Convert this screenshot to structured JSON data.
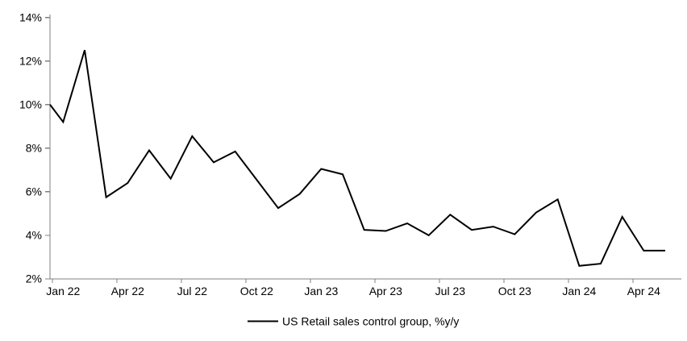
{
  "chart_data": {
    "type": "line",
    "title": "",
    "legend": "US Retail sales control group, %y/y",
    "legend_position": "bottom-center",
    "grid": "off",
    "ylim": [
      2,
      14
    ],
    "y_tick_labels": [
      "2%",
      "4%",
      "6%",
      "8%",
      "10%",
      "12%",
      "14%"
    ],
    "x_tick_labels": [
      "Jan 22",
      "Apr 22",
      "Jul 22",
      "Oct 22",
      "Jan 23",
      "Apr 23",
      "Jul 23",
      "Oct 23",
      "Jan 24",
      "Apr 24"
    ],
    "edge_start_value": 10.0,
    "series": [
      {
        "name": "US Retail sales control group, %y/y",
        "color": "#000000",
        "x": [
          "Jan 22",
          "Feb 22",
          "Mar 22",
          "Apr 22",
          "May 22",
          "Jun 22",
          "Jul 22",
          "Aug 22",
          "Sep 22",
          "Oct 22",
          "Nov 22",
          "Dec 22",
          "Jan 23",
          "Feb 23",
          "Mar 23",
          "Apr 23",
          "May 23",
          "Jun 23",
          "Jul 23",
          "Aug 23",
          "Sep 23",
          "Oct 23",
          "Nov 23",
          "Dec 23",
          "Jan 24",
          "Feb 24",
          "Mar 24",
          "Apr 24",
          "May 24"
        ],
        "values": [
          9.2,
          12.5,
          5.75,
          6.4,
          7.9,
          6.6,
          8.55,
          7.35,
          7.85,
          6.55,
          5.25,
          5.9,
          7.05,
          6.8,
          4.25,
          4.2,
          4.55,
          4.0,
          4.95,
          4.25,
          4.4,
          4.05,
          5.05,
          5.65,
          2.6,
          2.7,
          4.85,
          3.3,
          3.3
        ]
      }
    ],
    "colors": {
      "line": "#000000",
      "axis": "#808080",
      "labels": "#000000",
      "background": "#ffffff"
    }
  }
}
